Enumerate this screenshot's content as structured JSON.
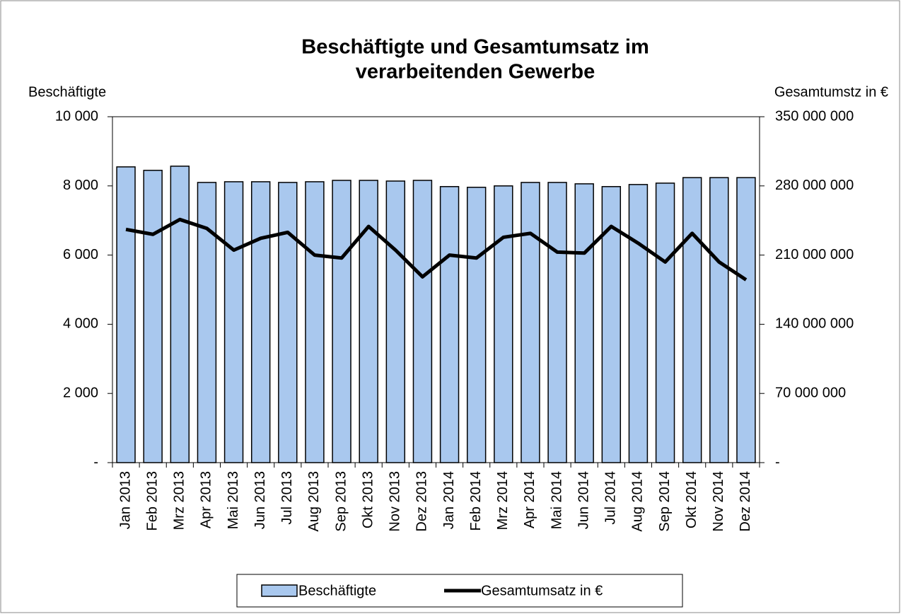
{
  "chart_data": {
    "type": "bar_line",
    "title": [
      "Beschäftigte und Gesamtumsatz im",
      "verarbeitenden Gewerbe"
    ],
    "y_label": "Beschäftigte",
    "y2_label": "Gesamtumstz in €",
    "categories": [
      "Jan 2013",
      "Feb 2013",
      "Mrz 2013",
      "Apr 2013",
      "Mai 2013",
      "Jun 2013",
      "Jul 2013",
      "Aug 2013",
      "Sep 2013",
      "Okt 2013",
      "Nov 2013",
      "Dez 2013",
      "Jan 2014",
      "Feb 2014",
      "Mrz 2014",
      "Apr 2014",
      "Mai 2014",
      "Jun 2014",
      "Jul 2014",
      "Aug 2014",
      "Sep 2014",
      "Okt 2014",
      "Nov 2014",
      "Dez 2014"
    ],
    "series": [
      {
        "name": "Beschäftigte",
        "type": "bar",
        "color": "#a9c8ee",
        "values": [
          8550,
          8450,
          8570,
          8100,
          8120,
          8120,
          8100,
          8120,
          8160,
          8160,
          8140,
          8160,
          7980,
          7960,
          8000,
          8100,
          8100,
          8060,
          7980,
          8040,
          8080,
          8240,
          8240,
          8240
        ]
      },
      {
        "name": "Gesamtumsatz in €",
        "type": "line",
        "axis": "y2",
        "color": "#000000",
        "values": [
          236000000,
          231000000,
          246000000,
          237000000,
          215000000,
          227000000,
          233000000,
          210000000,
          207000000,
          239000000,
          215000000,
          188000000,
          210000000,
          207000000,
          228000000,
          232000000,
          213000000,
          212000000,
          239000000,
          222000000,
          203000000,
          232000000,
          203000000,
          185000000
        ]
      }
    ],
    "ylim": [
      0,
      10000
    ],
    "yticks": [
      {
        "value": 0,
        "label": "-"
      },
      {
        "value": 2000,
        "label": "2 000"
      },
      {
        "value": 4000,
        "label": "4 000"
      },
      {
        "value": 6000,
        "label": "6 000"
      },
      {
        "value": 8000,
        "label": "8 000"
      },
      {
        "value": 10000,
        "label": "10 000"
      }
    ],
    "y2lim": [
      0,
      350000000
    ],
    "y2ticks": [
      {
        "value": 0,
        "label": "-"
      },
      {
        "value": 70000000,
        "label": "70 000 000"
      },
      {
        "value": 140000000,
        "label": "140 000 000"
      },
      {
        "value": 210000000,
        "label": "210 000 000"
      },
      {
        "value": 280000000,
        "label": "280 000 000"
      },
      {
        "value": 350000000,
        "label": "350 000 000"
      }
    ],
    "legend": "bottom"
  }
}
